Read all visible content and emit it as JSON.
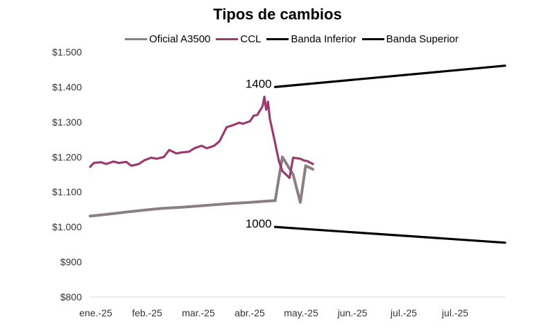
{
  "chart_data": {
    "type": "line",
    "title": "Tipos de cambios",
    "xlabel": "",
    "ylabel": "",
    "y_ticks": [
      "$800",
      "$900",
      "$1.000",
      "$1.100",
      "$1.200",
      "$1.300",
      "$1.400",
      "$1.500"
    ],
    "ylim": [
      800,
      1500
    ],
    "x_ticks": [
      "ene.-25",
      "feb.-25",
      "mar.-25",
      "abr.-25",
      "may.-25",
      "jun.-25",
      "jul.-25",
      "jul.-25"
    ],
    "xlim": [
      "2025-01-01",
      "2025-08-20"
    ],
    "grid": false,
    "legend_position": "top",
    "annotations": [
      {
        "text": "1400",
        "x": "2025-04-14",
        "y": 1400
      },
      {
        "text": "1000",
        "x": "2025-04-14",
        "y": 1000
      }
    ],
    "series": [
      {
        "name": "Oficial A3500",
        "color": "#8a7f82",
        "x": [
          "2025-01-01",
          "2025-01-10",
          "2025-01-20",
          "2025-01-31",
          "2025-02-10",
          "2025-02-20",
          "2025-02-28",
          "2025-03-10",
          "2025-03-20",
          "2025-03-31",
          "2025-04-05",
          "2025-04-10",
          "2025-04-14",
          "2025-04-18",
          "2025-04-24",
          "2025-04-28",
          "2025-05-01",
          "2025-05-05"
        ],
        "y": [
          1031,
          1036,
          1042,
          1048,
          1053,
          1056,
          1059,
          1063,
          1067,
          1070,
          1072,
          1074,
          1075,
          1200,
          1150,
          1070,
          1175,
          1165
        ]
      },
      {
        "name": "CCL",
        "color": "#9b3a72",
        "x": [
          "2025-01-01",
          "2025-01-03",
          "2025-01-07",
          "2025-01-10",
          "2025-01-14",
          "2025-01-17",
          "2025-01-21",
          "2025-01-24",
          "2025-01-28",
          "2025-01-31",
          "2025-02-04",
          "2025-02-07",
          "2025-02-11",
          "2025-02-14",
          "2025-02-18",
          "2025-02-21",
          "2025-02-25",
          "2025-02-28",
          "2025-03-04",
          "2025-03-07",
          "2025-03-11",
          "2025-03-14",
          "2025-03-18",
          "2025-03-21",
          "2025-03-25",
          "2025-03-27",
          "2025-03-31",
          "2025-04-02",
          "2025-04-04",
          "2025-04-07",
          "2025-04-08",
          "2025-04-09",
          "2025-04-10",
          "2025-04-11",
          "2025-04-14",
          "2025-04-16",
          "2025-04-18",
          "2025-04-22",
          "2025-04-24",
          "2025-04-28",
          "2025-04-30",
          "2025-05-02",
          "2025-05-05"
        ],
        "y": [
          1172,
          1183,
          1185,
          1180,
          1187,
          1183,
          1186,
          1175,
          1180,
          1190,
          1198,
          1195,
          1200,
          1220,
          1210,
          1213,
          1215,
          1225,
          1232,
          1225,
          1232,
          1245,
          1285,
          1290,
          1298,
          1295,
          1302,
          1318,
          1320,
          1345,
          1372,
          1335,
          1358,
          1310,
          1240,
          1190,
          1160,
          1140,
          1198,
          1195,
          1190,
          1188,
          1180
        ]
      },
      {
        "name": "Banda Inferior",
        "color": "#000000",
        "x": [
          "2025-04-14",
          "2025-08-20"
        ],
        "y": [
          1000,
          955
        ]
      },
      {
        "name": "Banda Superior",
        "color": "#000000",
        "x": [
          "2025-04-14",
          "2025-08-20"
        ],
        "y": [
          1400,
          1461
        ]
      }
    ]
  }
}
